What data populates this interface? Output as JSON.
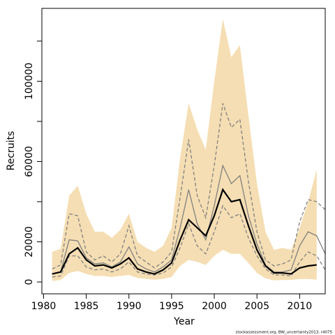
{
  "chart_data": {
    "type": "line",
    "x_label": "Year",
    "y_label": "Recruits",
    "footnote": "stockassessment.org, BW_uncertainty2013, r4075",
    "x": [
      1981,
      1982,
      1983,
      1984,
      1985,
      1986,
      1987,
      1988,
      1989,
      1990,
      1991,
      1992,
      1993,
      1994,
      1995,
      1996,
      1997,
      1998,
      1999,
      2000,
      2001,
      2002,
      2003,
      2004,
      2005,
      2006,
      2007,
      2008,
      2009,
      2010,
      2011,
      2012,
      2013
    ],
    "xlim": [
      1979.8,
      2013.0
    ],
    "xticks": [
      1980,
      1985,
      1990,
      1995,
      2000,
      2005,
      2010
    ],
    "ylim": [
      -5900,
      136300
    ],
    "yticks": [
      0,
      20000,
      {
        "value": 40000,
        "label": null
      },
      60000,
      {
        "value": 80000,
        "label": null
      },
      100000,
      {
        "value": 120000,
        "label": null
      }
    ],
    "band": {
      "color": "#f5deb3",
      "upper": [
        15000,
        16500,
        43000,
        48000,
        34000,
        25000,
        25000,
        22000,
        26000,
        34000,
        20000,
        17000,
        15000,
        18000,
        27000,
        62000,
        89000,
        76000,
        66000,
        100000,
        131000,
        112000,
        118000,
        83000,
        49000,
        25000,
        16000,
        17000,
        16000,
        27000,
        40000,
        56000,
        null
      ],
      "lower": [
        500,
        1000,
        4500,
        5500,
        4000,
        3000,
        3000,
        2500,
        3000,
        3500,
        2000,
        1500,
        1200,
        1500,
        2500,
        8000,
        11000,
        10000,
        8500,
        13000,
        16000,
        14000,
        14000,
        9500,
        4500,
        1800,
        800,
        1000,
        1000,
        1500,
        1500,
        1200,
        null
      ]
    },
    "series": [
      {
        "color": "#808080",
        "style": "dashed",
        "values": [
          6500,
          8500,
          34000,
          33000,
          15000,
          11000,
          13000,
          10000,
          14000,
          28000,
          13000,
          10000,
          7000,
          10000,
          15000,
          42000,
          71000,
          43000,
          32000,
          58000,
          89000,
          77000,
          81000,
          50000,
          25000,
          11000,
          8000,
          9000,
          11000,
          30000,
          41000,
          40000,
          36000
        ]
      },
      {
        "color": "#808080",
        "style": "dashed",
        "values": [
          2500,
          3000,
          13000,
          13000,
          7500,
          6000,
          6500,
          5000,
          6500,
          10000,
          5000,
          4000,
          3500,
          4500,
          7500,
          17000,
          29000,
          18000,
          14000,
          25000,
          38000,
          32000,
          34000,
          22000,
          13000,
          6500,
          3500,
          3500,
          3000,
          10000,
          15000,
          13000,
          6000
        ]
      },
      {
        "color": "#808080",
        "style": "solid",
        "values": [
          4000,
          5000,
          21000,
          20500,
          12000,
          9000,
          9500,
          7500,
          10000,
          17500,
          9000,
          6500,
          5000,
          7500,
          11000,
          27000,
          46000,
          29000,
          21000,
          38000,
          58000,
          49000,
          53000,
          33000,
          19000,
          8500,
          5000,
          5000,
          6000,
          18000,
          25000,
          23000,
          14000
        ]
      },
      {
        "color": "#000000",
        "style": "bold",
        "values": [
          4000,
          5000,
          14000,
          17000,
          11000,
          8000,
          8500,
          7000,
          9000,
          12000,
          6500,
          5000,
          4000,
          6000,
          9500,
          21000,
          31000,
          27000,
          23000,
          33000,
          46000,
          40000,
          41000,
          28000,
          16000,
          8000,
          4500,
          4500,
          4000,
          7000,
          8000,
          8500,
          null
        ]
      }
    ]
  }
}
